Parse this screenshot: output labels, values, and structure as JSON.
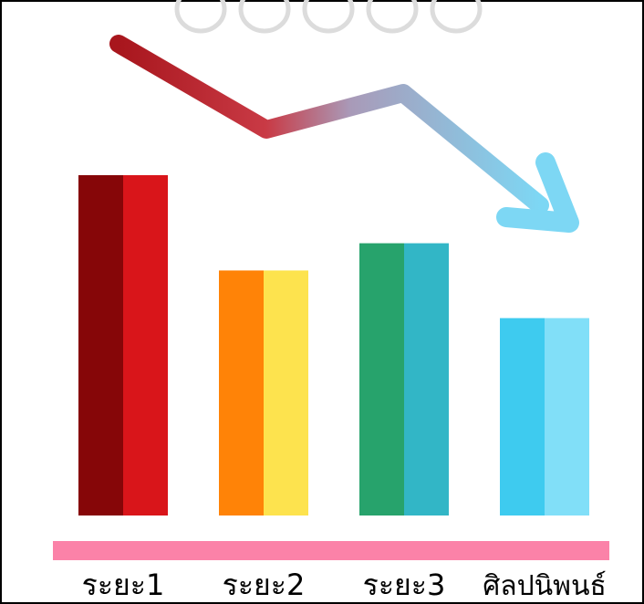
{
  "chart_data": {
    "type": "bar",
    "categories": [
      "ระยะ1",
      "ระยะ2",
      "ระยะ3",
      "ศิลปนิพนธ์"
    ],
    "values": [
      100,
      72,
      80,
      58
    ],
    "ylim": [
      0,
      100
    ],
    "grid": false,
    "legend": "none",
    "trend": "downward"
  },
  "colors": {
    "bar_dark": [
      "#860608",
      "#ff8307",
      "#27a36c",
      "#3ecbef"
    ],
    "bar_light": [
      "#d9151a",
      "#fde34e",
      "#32b6c6",
      "#81dff8"
    ],
    "baseline": "#fb82a8",
    "arrow_start": "#a8161d",
    "arrow_end": "#7dd7f4"
  }
}
